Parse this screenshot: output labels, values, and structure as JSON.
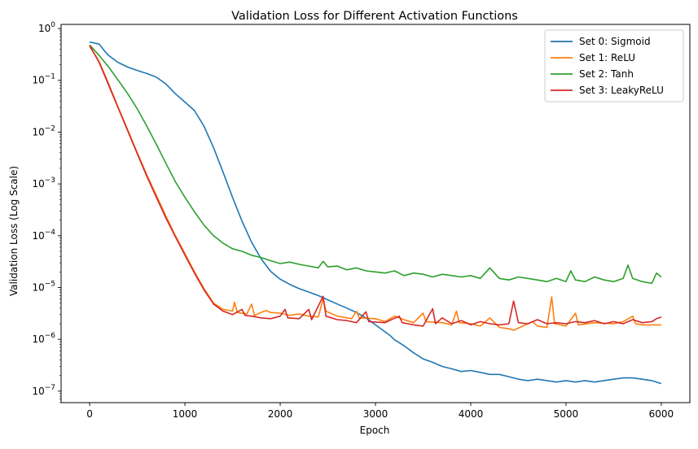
{
  "chart_data": {
    "type": "line",
    "title": "Validation Loss for Different Activation Functions",
    "xlabel": "Epoch",
    "ylabel": "Validation Loss (Log Scale)",
    "xlim": [
      -300,
      6300
    ],
    "ylim": [
      6e-08,
      1.2
    ],
    "yscale": "log",
    "grid": false,
    "legend_position": "top-right",
    "x_ticks": [
      0,
      1000,
      2000,
      3000,
      4000,
      5000,
      6000
    ],
    "x_tick_labels": [
      "0",
      "1000",
      "2000",
      "3000",
      "4000",
      "5000",
      "6000"
    ],
    "y_ticks": [
      1,
      0.1,
      0.01,
      0.001,
      0.0001,
      1e-05,
      1e-06,
      1e-07
    ],
    "y_tick_labels": [
      {
        "base": "10",
        "exp": "0"
      },
      {
        "base": "10",
        "exp": "−1"
      },
      {
        "base": "10",
        "exp": "−2"
      },
      {
        "base": "10",
        "exp": "−3"
      },
      {
        "base": "10",
        "exp": "−4"
      },
      {
        "base": "10",
        "exp": "−5"
      },
      {
        "base": "10",
        "exp": "−6"
      },
      {
        "base": "10",
        "exp": "−7"
      }
    ],
    "series": [
      {
        "name": "Set 0: Sigmoid",
        "color": "#1f77b4",
        "points": [
          [
            0,
            0.55
          ],
          [
            100,
            0.5
          ],
          [
            150,
            0.38
          ],
          [
            200,
            0.3
          ],
          [
            300,
            0.22
          ],
          [
            400,
            0.18
          ],
          [
            500,
            0.155
          ],
          [
            600,
            0.135
          ],
          [
            700,
            0.115
          ],
          [
            800,
            0.085
          ],
          [
            900,
            0.055
          ],
          [
            1000,
            0.038
          ],
          [
            1100,
            0.026
          ],
          [
            1200,
            0.013
          ],
          [
            1300,
            0.005
          ],
          [
            1400,
            0.0017
          ],
          [
            1500,
            0.00055
          ],
          [
            1600,
            0.00019
          ],
          [
            1700,
            7.5e-05
          ],
          [
            1800,
            3.6e-05
          ],
          [
            1900,
            2.05e-05
          ],
          [
            2000,
            1.45e-05
          ],
          [
            2100,
            1.15e-05
          ],
          [
            2200,
            9.5e-06
          ],
          [
            2300,
            8.2e-06
          ],
          [
            2400,
            7e-06
          ],
          [
            2500,
            5.8e-06
          ],
          [
            2600,
            4.8e-06
          ],
          [
            2700,
            4e-06
          ],
          [
            2800,
            3.3e-06
          ],
          [
            2900,
            2.6e-06
          ],
          [
            3000,
            1.9e-06
          ],
          [
            3100,
            1.4e-06
          ],
          [
            3150,
            1.2e-06
          ],
          [
            3200,
            9.8e-07
          ],
          [
            3300,
            7.5e-07
          ],
          [
            3400,
            5.5e-07
          ],
          [
            3500,
            4.2e-07
          ],
          [
            3600,
            3.6e-07
          ],
          [
            3700,
            3e-07
          ],
          [
            3800,
            2.7e-07
          ],
          [
            3900,
            2.4e-07
          ],
          [
            4000,
            2.5e-07
          ],
          [
            4100,
            2.3e-07
          ],
          [
            4200,
            2.1e-07
          ],
          [
            4300,
            2.1e-07
          ],
          [
            4400,
            1.9e-07
          ],
          [
            4500,
            1.7e-07
          ],
          [
            4600,
            1.6e-07
          ],
          [
            4700,
            1.7e-07
          ],
          [
            4800,
            1.6e-07
          ],
          [
            4900,
            1.5e-07
          ],
          [
            5000,
            1.6e-07
          ],
          [
            5100,
            1.5e-07
          ],
          [
            5200,
            1.6e-07
          ],
          [
            5300,
            1.5e-07
          ],
          [
            5400,
            1.6e-07
          ],
          [
            5500,
            1.7e-07
          ],
          [
            5600,
            1.8e-07
          ],
          [
            5700,
            1.8e-07
          ],
          [
            5800,
            1.7e-07
          ],
          [
            5900,
            1.6e-07
          ],
          [
            6000,
            1.4e-07
          ]
        ]
      },
      {
        "name": "Set 1: ReLU",
        "color": "#ff7f0e",
        "points": [
          [
            0,
            0.45
          ],
          [
            100,
            0.23
          ],
          [
            200,
            0.085
          ],
          [
            300,
            0.03
          ],
          [
            400,
            0.011
          ],
          [
            500,
            0.004
          ],
          [
            600,
            0.0015
          ],
          [
            700,
            0.0006
          ],
          [
            800,
            0.00024
          ],
          [
            900,
            0.0001
          ],
          [
            1000,
            4.5e-05
          ],
          [
            1100,
            2e-05
          ],
          [
            1200,
            9.5e-06
          ],
          [
            1300,
            5e-06
          ],
          [
            1400,
            3.8e-06
          ],
          [
            1500,
            3.5e-06
          ],
          [
            1520,
            5.2e-06
          ],
          [
            1550,
            3.3e-06
          ],
          [
            1650,
            3.1e-06
          ],
          [
            1700,
            4.8e-06
          ],
          [
            1730,
            2.9e-06
          ],
          [
            1850,
            3.6e-06
          ],
          [
            1900,
            3.3e-06
          ],
          [
            2000,
            3.2e-06
          ],
          [
            2100,
            2.9e-06
          ],
          [
            2200,
            3.1e-06
          ],
          [
            2300,
            2.8e-06
          ],
          [
            2400,
            2.7e-06
          ],
          [
            2450,
            6e-06
          ],
          [
            2480,
            3.5e-06
          ],
          [
            2600,
            2.8e-06
          ],
          [
            2750,
            2.5e-06
          ],
          [
            2800,
            3.5e-06
          ],
          [
            2830,
            2.6e-06
          ],
          [
            3000,
            2.5e-06
          ],
          [
            3100,
            2.2e-06
          ],
          [
            3200,
            2.8e-06
          ],
          [
            3300,
            2.4e-06
          ],
          [
            3400,
            2.1e-06
          ],
          [
            3500,
            3.2e-06
          ],
          [
            3530,
            2.2e-06
          ],
          [
            3700,
            2.1e-06
          ],
          [
            3800,
            1.9e-06
          ],
          [
            3850,
            3.5e-06
          ],
          [
            3880,
            2.1e-06
          ],
          [
            4000,
            2e-06
          ],
          [
            4100,
            1.8e-06
          ],
          [
            4200,
            2.6e-06
          ],
          [
            4300,
            1.7e-06
          ],
          [
            4400,
            1.6e-06
          ],
          [
            4450,
            1.5e-06
          ],
          [
            4600,
            2e-06
          ],
          [
            4650,
            2.2e-06
          ],
          [
            4700,
            1.8e-06
          ],
          [
            4800,
            1.7e-06
          ],
          [
            4850,
            6.6e-06
          ],
          [
            4880,
            2e-06
          ],
          [
            5000,
            1.8e-06
          ],
          [
            5100,
            3.2e-06
          ],
          [
            5130,
            1.9e-06
          ],
          [
            5300,
            2.1e-06
          ],
          [
            5500,
            2e-06
          ],
          [
            5600,
            2.2e-06
          ],
          [
            5700,
            2.8e-06
          ],
          [
            5730,
            2e-06
          ],
          [
            5800,
            1.9e-06
          ],
          [
            5900,
            1.9e-06
          ],
          [
            6000,
            1.9e-06
          ]
        ]
      },
      {
        "name": "Set 2: Tanh",
        "color": "#2ca02c",
        "points": [
          [
            0,
            0.48
          ],
          [
            100,
            0.3
          ],
          [
            200,
            0.18
          ],
          [
            300,
            0.1
          ],
          [
            400,
            0.055
          ],
          [
            500,
            0.028
          ],
          [
            600,
            0.013
          ],
          [
            700,
            0.0058
          ],
          [
            800,
            0.0025
          ],
          [
            900,
            0.0011
          ],
          [
            1000,
            0.00055
          ],
          [
            1100,
            0.00029
          ],
          [
            1200,
            0.00016
          ],
          [
            1300,
            0.0001
          ],
          [
            1400,
            7.2e-05
          ],
          [
            1500,
            5.6e-05
          ],
          [
            1600,
            5e-05
          ],
          [
            1700,
            4.2e-05
          ],
          [
            1800,
            3.8e-05
          ],
          [
            1900,
            3.3e-05
          ],
          [
            2000,
            2.9e-05
          ],
          [
            2100,
            3.1e-05
          ],
          [
            2200,
            2.8e-05
          ],
          [
            2300,
            2.6e-05
          ],
          [
            2400,
            2.4e-05
          ],
          [
            2450,
            3.2e-05
          ],
          [
            2500,
            2.5e-05
          ],
          [
            2600,
            2.6e-05
          ],
          [
            2700,
            2.2e-05
          ],
          [
            2800,
            2.4e-05
          ],
          [
            2900,
            2.1e-05
          ],
          [
            3000,
            2e-05
          ],
          [
            3100,
            1.9e-05
          ],
          [
            3200,
            2.1e-05
          ],
          [
            3300,
            1.7e-05
          ],
          [
            3400,
            1.9e-05
          ],
          [
            3500,
            1.8e-05
          ],
          [
            3600,
            1.6e-05
          ],
          [
            3700,
            1.8e-05
          ],
          [
            3800,
            1.7e-05
          ],
          [
            3900,
            1.6e-05
          ],
          [
            4000,
            1.7e-05
          ],
          [
            4100,
            1.5e-05
          ],
          [
            4200,
            2.4e-05
          ],
          [
            4300,
            1.5e-05
          ],
          [
            4400,
            1.4e-05
          ],
          [
            4500,
            1.6e-05
          ],
          [
            4600,
            1.5e-05
          ],
          [
            4700,
            1.4e-05
          ],
          [
            4800,
            1.3e-05
          ],
          [
            4900,
            1.5e-05
          ],
          [
            5000,
            1.3e-05
          ],
          [
            5050,
            2.1e-05
          ],
          [
            5100,
            1.4e-05
          ],
          [
            5200,
            1.3e-05
          ],
          [
            5300,
            1.6e-05
          ],
          [
            5400,
            1.4e-05
          ],
          [
            5500,
            1.3e-05
          ],
          [
            5600,
            1.5e-05
          ],
          [
            5650,
            2.7e-05
          ],
          [
            5700,
            1.5e-05
          ],
          [
            5800,
            1.3e-05
          ],
          [
            5900,
            1.2e-05
          ],
          [
            5950,
            1.9e-05
          ],
          [
            6000,
            1.6e-05
          ]
        ]
      },
      {
        "name": "Set 3: LeakyReLU",
        "color": "#d62728",
        "points": [
          [
            0,
            0.47
          ],
          [
            100,
            0.22
          ],
          [
            200,
            0.08
          ],
          [
            300,
            0.029
          ],
          [
            400,
            0.0105
          ],
          [
            500,
            0.0038
          ],
          [
            600,
            0.0014
          ],
          [
            700,
            0.00055
          ],
          [
            800,
            0.00022
          ],
          [
            900,
            9.5e-05
          ],
          [
            1000,
            4.2e-05
          ],
          [
            1100,
            1.9e-05
          ],
          [
            1200,
            9e-06
          ],
          [
            1300,
            4.8e-06
          ],
          [
            1400,
            3.5e-06
          ],
          [
            1500,
            3e-06
          ],
          [
            1600,
            3.8e-06
          ],
          [
            1630,
            2.9e-06
          ],
          [
            1700,
            2.8e-06
          ],
          [
            1800,
            2.6e-06
          ],
          [
            1900,
            2.5e-06
          ],
          [
            2000,
            2.8e-06
          ],
          [
            2050,
            3.8e-06
          ],
          [
            2080,
            2.6e-06
          ],
          [
            2200,
            2.5e-06
          ],
          [
            2300,
            3.8e-06
          ],
          [
            2330,
            2.4e-06
          ],
          [
            2450,
            6.8e-06
          ],
          [
            2480,
            2.8e-06
          ],
          [
            2600,
            2.4e-06
          ],
          [
            2700,
            2.3e-06
          ],
          [
            2800,
            2.1e-06
          ],
          [
            2900,
            3.4e-06
          ],
          [
            2930,
            2.2e-06
          ],
          [
            3100,
            2.1e-06
          ],
          [
            3250,
            2.8e-06
          ],
          [
            3280,
            2.1e-06
          ],
          [
            3400,
            1.9e-06
          ],
          [
            3500,
            1.8e-06
          ],
          [
            3600,
            3.9e-06
          ],
          [
            3630,
            2e-06
          ],
          [
            3700,
            2.6e-06
          ],
          [
            3800,
            2e-06
          ],
          [
            3900,
            2.3e-06
          ],
          [
            4000,
            1.9e-06
          ],
          [
            4100,
            2.2e-06
          ],
          [
            4200,
            2e-06
          ],
          [
            4300,
            1.9e-06
          ],
          [
            4400,
            2e-06
          ],
          [
            4450,
            5.5e-06
          ],
          [
            4500,
            2.1e-06
          ],
          [
            4600,
            2e-06
          ],
          [
            4700,
            2.4e-06
          ],
          [
            4800,
            2e-06
          ],
          [
            4900,
            2.1e-06
          ],
          [
            5000,
            2e-06
          ],
          [
            5100,
            2.2e-06
          ],
          [
            5200,
            2.1e-06
          ],
          [
            5300,
            2.3e-06
          ],
          [
            5400,
            2e-06
          ],
          [
            5500,
            2.2e-06
          ],
          [
            5600,
            2e-06
          ],
          [
            5700,
            2.4e-06
          ],
          [
            5800,
            2.1e-06
          ],
          [
            5900,
            2.2e-06
          ],
          [
            5950,
            2.5e-06
          ],
          [
            6000,
            2.7e-06
          ]
        ]
      }
    ]
  }
}
